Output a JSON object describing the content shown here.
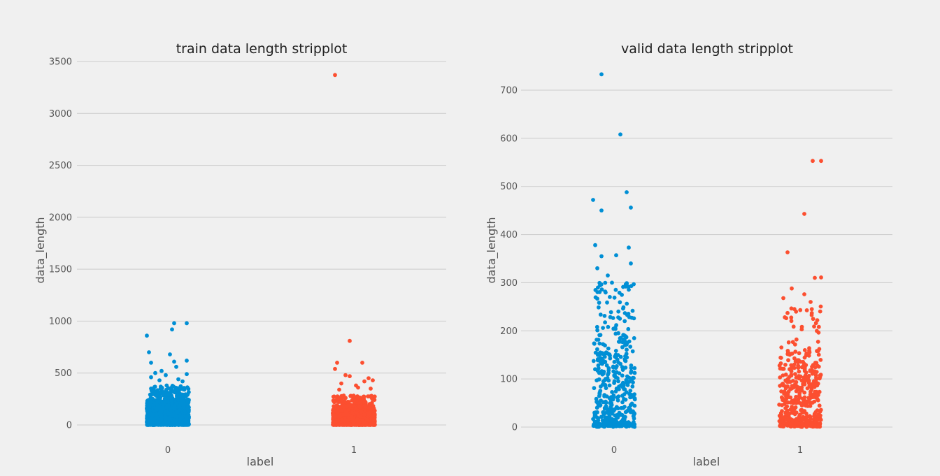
{
  "colors": {
    "background": "#f0f0f0",
    "grid": "#cbcbcb",
    "label_0": "#008fd5",
    "label_1": "#fc4f30"
  },
  "chart_data": [
    {
      "type": "scatter",
      "title": "train data length stripplot",
      "xlabel": "label",
      "ylabel": "data_length",
      "categories": [
        "0",
        "1"
      ],
      "yticks": [
        0,
        500,
        1000,
        1500,
        2000,
        2500,
        3000,
        3500
      ],
      "ylim": [
        -120,
        3550
      ],
      "grid": true,
      "series": [
        {
          "category": "0",
          "color": "#008fd5",
          "approx_count": 1600,
          "points": [
            [
              -0.1,
              860
            ],
            [
              0.02,
              920
            ],
            [
              0.03,
              980
            ],
            [
              0.09,
              980
            ],
            [
              0.09,
              620
            ],
            [
              -0.09,
              700
            ],
            [
              0.01,
              680
            ],
            [
              0.03,
              610
            ],
            [
              -0.08,
              600
            ],
            [
              0.04,
              560
            ],
            [
              -0.03,
              520
            ],
            [
              -0.06,
              500
            ],
            [
              0.09,
              490
            ],
            [
              -0.01,
              480
            ],
            [
              -0.08,
              460
            ],
            [
              0.05,
              440
            ],
            [
              -0.04,
              430
            ],
            [
              0.07,
              420
            ]
          ],
          "dense_band": {
            "y_max": 380,
            "density_above_250": 0.05
          }
        },
        {
          "category": "1",
          "color": "#fc4f30",
          "approx_count": 1600,
          "points": [
            [
              -0.09,
              3370
            ],
            [
              -0.02,
              810
            ],
            [
              -0.08,
              600
            ],
            [
              0.04,
              600
            ],
            [
              -0.09,
              540
            ],
            [
              -0.04,
              480
            ],
            [
              0.07,
              450
            ],
            [
              0.09,
              430
            ],
            [
              -0.02,
              470
            ],
            [
              0.05,
              420
            ],
            [
              -0.06,
              400
            ],
            [
              0.01,
              380
            ],
            [
              0.02,
              360
            ],
            [
              -0.07,
              340
            ],
            [
              0.08,
              350
            ]
          ],
          "dense_band": {
            "y_max": 280,
            "density_above_250": 0.04
          }
        }
      ]
    },
    {
      "type": "scatter",
      "title": "valid data length stripplot",
      "xlabel": "label",
      "ylabel": "data_length",
      "categories": [
        "0",
        "1"
      ],
      "yticks": [
        0,
        100,
        200,
        300,
        400,
        500,
        600,
        700
      ],
      "ylim": [
        -10,
        760
      ],
      "grid": true,
      "series": [
        {
          "category": "0",
          "color": "#008fd5",
          "approx_count": 450,
          "points": [
            [
              -0.06,
              733
            ],
            [
              0.03,
              608
            ],
            [
              -0.1,
              472
            ],
            [
              0.06,
              488
            ],
            [
              -0.06,
              450
            ],
            [
              0.08,
              456
            ],
            [
              -0.09,
              378
            ],
            [
              0.07,
              373
            ],
            [
              -0.06,
              355
            ],
            [
              0.01,
              357
            ],
            [
              0.08,
              340
            ],
            [
              -0.08,
              330
            ],
            [
              -0.03,
              315
            ],
            [
              0.06,
              297
            ],
            [
              -0.01,
              300
            ]
          ],
          "dense_band": {
            "y_max": 300,
            "density_above_250": 0.1
          }
        },
        {
          "category": "1",
          "color": "#fc4f30",
          "approx_count": 450,
          "points": [
            [
              0.06,
              553
            ],
            [
              0.1,
              553
            ],
            [
              0.02,
              443
            ],
            [
              -0.06,
              363
            ],
            [
              0.07,
              310
            ],
            [
              0.1,
              311
            ],
            [
              -0.04,
              288
            ],
            [
              0.02,
              276
            ],
            [
              -0.08,
              268
            ],
            [
              0.05,
              260
            ]
          ],
          "dense_band": {
            "y_max": 250,
            "density_above_250": 0.06
          }
        }
      ]
    }
  ]
}
